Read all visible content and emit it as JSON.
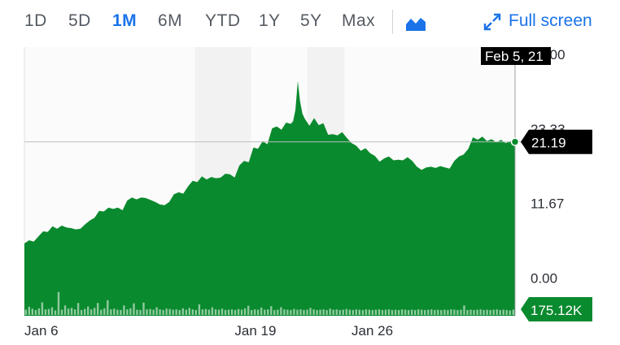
{
  "toolbar": {
    "ranges": [
      "1D",
      "5D",
      "1M",
      "6M",
      "YTD",
      "1Y",
      "5Y",
      "Max"
    ],
    "active_range": "1M",
    "chart_type_icon": "area-chart-icon",
    "fullscreen_icon": "expand-arrows-icon",
    "fullscreen_label": "Full screen"
  },
  "colors": {
    "accent": "#1a73e8",
    "area_fill": "#0a8a2e",
    "badge_bg": "#000000",
    "volume_badge_bg": "#0a8a2e",
    "band": "#f2f2f2"
  },
  "chart_data": {
    "type": "area",
    "y_ticks": [
      {
        "value": 0,
        "label": "0.00"
      },
      {
        "value": 11.67,
        "label": "11.67"
      },
      {
        "value": 23.33,
        "label": "23.33"
      },
      {
        "value": 35,
        "label": "35.00"
      }
    ],
    "ylim": [
      -6,
      36
    ],
    "x_labels": [
      {
        "index": 0,
        "label": "Jan 6"
      },
      {
        "index": 9,
        "label": "Jan 19"
      },
      {
        "index": 14,
        "label": "Jan 26"
      }
    ],
    "hover_date": "Feb 5, 21",
    "current_price_label": "21.19",
    "current_price": 21.19,
    "current_volume_label": "175.12K",
    "price_series": [
      [
        0,
        5.3
      ],
      [
        0.2,
        5.8
      ],
      [
        0.4,
        5.6
      ],
      [
        0.6,
        6.4
      ],
      [
        0.8,
        7.2
      ],
      [
        1.0,
        7.1
      ],
      [
        1.2,
        8.0
      ],
      [
        1.4,
        7.6
      ],
      [
        1.6,
        8.1
      ],
      [
        1.8,
        7.8
      ],
      [
        2.0,
        7.7
      ],
      [
        2.2,
        7.5
      ],
      [
        2.4,
        7.6
      ],
      [
        2.6,
        8.3
      ],
      [
        2.8,
        8.9
      ],
      [
        3.0,
        9.3
      ],
      [
        3.2,
        10.4
      ],
      [
        3.4,
        10.3
      ],
      [
        3.6,
        10.9
      ],
      [
        3.8,
        10.7
      ],
      [
        4.0,
        10.9
      ],
      [
        4.2,
        10.5
      ],
      [
        4.4,
        12.0
      ],
      [
        4.6,
        12.5
      ],
      [
        4.8,
        12.2
      ],
      [
        5.0,
        12.5
      ],
      [
        5.2,
        12.4
      ],
      [
        5.4,
        12.1
      ],
      [
        5.6,
        11.8
      ],
      [
        5.8,
        11.4
      ],
      [
        6.0,
        11.3
      ],
      [
        6.2,
        11.8
      ],
      [
        6.4,
        13.0
      ],
      [
        6.6,
        13.3
      ],
      [
        6.8,
        13.1
      ],
      [
        7.0,
        14.2
      ],
      [
        7.2,
        15.1
      ],
      [
        7.4,
        14.9
      ],
      [
        7.6,
        15.8
      ],
      [
        7.8,
        15.3
      ],
      [
        8.0,
        15.7
      ],
      [
        8.2,
        15.5
      ],
      [
        8.4,
        15.6
      ],
      [
        8.6,
        16.2
      ],
      [
        8.8,
        16.1
      ],
      [
        9.0,
        15.6
      ],
      [
        9.2,
        17.5
      ],
      [
        9.4,
        18.2
      ],
      [
        9.6,
        18.0
      ],
      [
        9.8,
        20.3
      ],
      [
        10.0,
        20.1
      ],
      [
        10.2,
        21.3
      ],
      [
        10.4,
        20.8
      ],
      [
        10.6,
        23.3
      ],
      [
        10.8,
        23.6
      ],
      [
        11.0,
        23.1
      ],
      [
        11.2,
        24.2
      ],
      [
        11.4,
        24.0
      ],
      [
        11.5,
        24.4
      ],
      [
        11.6,
        26.2
      ],
      [
        11.7,
        30.7
      ],
      [
        11.8,
        27.5
      ],
      [
        11.9,
        25.6
      ],
      [
        12.0,
        24.8
      ],
      [
        12.2,
        23.7
      ],
      [
        12.4,
        24.9
      ],
      [
        12.6,
        23.8
      ],
      [
        12.8,
        24.1
      ],
      [
        13.0,
        22.3
      ],
      [
        13.2,
        22.4
      ],
      [
        13.4,
        22.2
      ],
      [
        13.6,
        22.7
      ],
      [
        13.8,
        21.8
      ],
      [
        14.0,
        21.0
      ],
      [
        14.2,
        20.6
      ],
      [
        14.4,
        19.8
      ],
      [
        14.6,
        20.2
      ],
      [
        14.8,
        19.4
      ],
      [
        15.0,
        19.0
      ],
      [
        15.2,
        18.1
      ],
      [
        15.4,
        18.6
      ],
      [
        15.6,
        18.9
      ],
      [
        15.8,
        18.3
      ],
      [
        16.0,
        18.4
      ],
      [
        16.2,
        18.3
      ],
      [
        16.4,
        18.8
      ],
      [
        16.6,
        18.2
      ],
      [
        16.8,
        17.3
      ],
      [
        17.0,
        16.8
      ],
      [
        17.2,
        17.2
      ],
      [
        17.4,
        17.3
      ],
      [
        17.6,
        17.1
      ],
      [
        17.8,
        17.4
      ],
      [
        18.0,
        17.2
      ],
      [
        18.2,
        17.0
      ],
      [
        18.4,
        18.2
      ],
      [
        18.6,
        18.9
      ],
      [
        18.8,
        19.2
      ],
      [
        19.0,
        20.1
      ],
      [
        19.2,
        21.9
      ],
      [
        19.4,
        21.5
      ],
      [
        19.6,
        22.0
      ],
      [
        19.8,
        21.3
      ],
      [
        20.0,
        21.6
      ],
      [
        20.2,
        21.1
      ],
      [
        20.4,
        21.5
      ],
      [
        20.6,
        21.0
      ],
      [
        20.8,
        21.3
      ],
      [
        21.0,
        21.19
      ]
    ],
    "volume_series": [
      1.5,
      2.3,
      1.8,
      1.4,
      1.9,
      3.6,
      1.6,
      1.7,
      2.2,
      1.3,
      6.5,
      1.5,
      2.7,
      1.8,
      2.0,
      1.6,
      3.4,
      1.4,
      1.7,
      2.4,
      1.6,
      2.0,
      3.4,
      1.5,
      1.9,
      4.2,
      1.6,
      1.8,
      1.5,
      1.4,
      2.7,
      1.6,
      1.9,
      3.3,
      1.5,
      1.4,
      3.5,
      1.6,
      1.7,
      1.5,
      2.2,
      1.6,
      1.4,
      1.8,
      1.7,
      1.5,
      1.6,
      1.4,
      1.9,
      1.5,
      2.0,
      1.6,
      1.4,
      3.0,
      1.6,
      1.7,
      1.5,
      2.2,
      1.6,
      1.5,
      1.8,
      1.4,
      1.5,
      1.6,
      1.4,
      1.7,
      1.5,
      1.9,
      2.6,
      1.4,
      1.6,
      1.5,
      2.1,
      1.5,
      1.6,
      2.5,
      1.4,
      1.5,
      2.2,
      1.6,
      1.5,
      1.4,
      1.7,
      1.5,
      1.6,
      1.4,
      1.5,
      2.0,
      1.6,
      1.4,
      1.5,
      1.6,
      1.4,
      1.8,
      1.5,
      1.6,
      1.4,
      1.5,
      1.7,
      1.5,
      1.4,
      1.6,
      1.5,
      1.4,
      1.6,
      1.5,
      1.4,
      1.5,
      1.6,
      1.4,
      1.5,
      1.6,
      1.4,
      1.5,
      1.4,
      1.6,
      1.5,
      1.4,
      1.5,
      1.4,
      1.6,
      1.5,
      1.4,
      1.5,
      1.6,
      1.4,
      1.5,
      1.4,
      1.5,
      1.4,
      1.6,
      1.5,
      1.4,
      1.5,
      2.7,
      1.4,
      1.5,
      1.4,
      1.5,
      1.6,
      1.4,
      1.5,
      1.4,
      1.5,
      1.6,
      1.4,
      1.5,
      1.4,
      1.3,
      1.5
    ],
    "x_index_max": 21,
    "weekend_bands": [
      [
        7.3,
        9.7
      ],
      [
        12.1,
        13.7
      ]
    ]
  }
}
